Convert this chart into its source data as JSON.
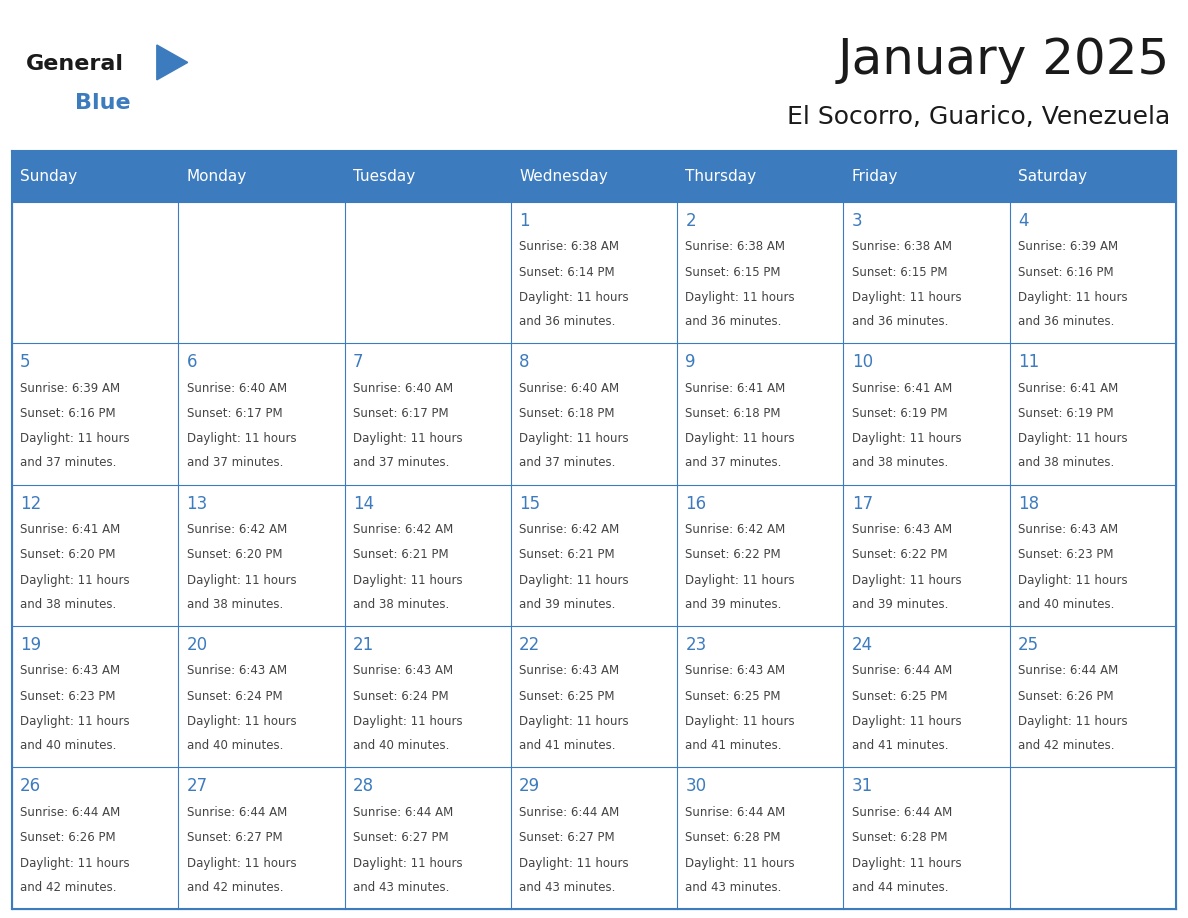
{
  "title": "January 2025",
  "subtitle": "El Socorro, Guarico, Venezuela",
  "header_bg_color": "#3d7bbf",
  "header_text_color": "#ffffff",
  "border_color": "#3d7bbf",
  "day_number_color": "#3d7bbf",
  "cell_text_color": "#444444",
  "days_of_week": [
    "Sunday",
    "Monday",
    "Tuesday",
    "Wednesday",
    "Thursday",
    "Friday",
    "Saturday"
  ],
  "calendar_data": [
    [
      {
        "day": "",
        "sunrise": "",
        "sunset": "",
        "daylight_h": "",
        "daylight_m": ""
      },
      {
        "day": "",
        "sunrise": "",
        "sunset": "",
        "daylight_h": "",
        "daylight_m": ""
      },
      {
        "day": "",
        "sunrise": "",
        "sunset": "",
        "daylight_h": "",
        "daylight_m": ""
      },
      {
        "day": "1",
        "sunrise": "6:38 AM",
        "sunset": "6:14 PM",
        "daylight_h": "11",
        "daylight_m": "36"
      },
      {
        "day": "2",
        "sunrise": "6:38 AM",
        "sunset": "6:15 PM",
        "daylight_h": "11",
        "daylight_m": "36"
      },
      {
        "day": "3",
        "sunrise": "6:38 AM",
        "sunset": "6:15 PM",
        "daylight_h": "11",
        "daylight_m": "36"
      },
      {
        "day": "4",
        "sunrise": "6:39 AM",
        "sunset": "6:16 PM",
        "daylight_h": "11",
        "daylight_m": "36"
      }
    ],
    [
      {
        "day": "5",
        "sunrise": "6:39 AM",
        "sunset": "6:16 PM",
        "daylight_h": "11",
        "daylight_m": "37"
      },
      {
        "day": "6",
        "sunrise": "6:40 AM",
        "sunset": "6:17 PM",
        "daylight_h": "11",
        "daylight_m": "37"
      },
      {
        "day": "7",
        "sunrise": "6:40 AM",
        "sunset": "6:17 PM",
        "daylight_h": "11",
        "daylight_m": "37"
      },
      {
        "day": "8",
        "sunrise": "6:40 AM",
        "sunset": "6:18 PM",
        "daylight_h": "11",
        "daylight_m": "37"
      },
      {
        "day": "9",
        "sunrise": "6:41 AM",
        "sunset": "6:18 PM",
        "daylight_h": "11",
        "daylight_m": "37"
      },
      {
        "day": "10",
        "sunrise": "6:41 AM",
        "sunset": "6:19 PM",
        "daylight_h": "11",
        "daylight_m": "38"
      },
      {
        "day": "11",
        "sunrise": "6:41 AM",
        "sunset": "6:19 PM",
        "daylight_h": "11",
        "daylight_m": "38"
      }
    ],
    [
      {
        "day": "12",
        "sunrise": "6:41 AM",
        "sunset": "6:20 PM",
        "daylight_h": "11",
        "daylight_m": "38"
      },
      {
        "day": "13",
        "sunrise": "6:42 AM",
        "sunset": "6:20 PM",
        "daylight_h": "11",
        "daylight_m": "38"
      },
      {
        "day": "14",
        "sunrise": "6:42 AM",
        "sunset": "6:21 PM",
        "daylight_h": "11",
        "daylight_m": "38"
      },
      {
        "day": "15",
        "sunrise": "6:42 AM",
        "sunset": "6:21 PM",
        "daylight_h": "11",
        "daylight_m": "39"
      },
      {
        "day": "16",
        "sunrise": "6:42 AM",
        "sunset": "6:22 PM",
        "daylight_h": "11",
        "daylight_m": "39"
      },
      {
        "day": "17",
        "sunrise": "6:43 AM",
        "sunset": "6:22 PM",
        "daylight_h": "11",
        "daylight_m": "39"
      },
      {
        "day": "18",
        "sunrise": "6:43 AM",
        "sunset": "6:23 PM",
        "daylight_h": "11",
        "daylight_m": "40"
      }
    ],
    [
      {
        "day": "19",
        "sunrise": "6:43 AM",
        "sunset": "6:23 PM",
        "daylight_h": "11",
        "daylight_m": "40"
      },
      {
        "day": "20",
        "sunrise": "6:43 AM",
        "sunset": "6:24 PM",
        "daylight_h": "11",
        "daylight_m": "40"
      },
      {
        "day": "21",
        "sunrise": "6:43 AM",
        "sunset": "6:24 PM",
        "daylight_h": "11",
        "daylight_m": "40"
      },
      {
        "day": "22",
        "sunrise": "6:43 AM",
        "sunset": "6:25 PM",
        "daylight_h": "11",
        "daylight_m": "41"
      },
      {
        "day": "23",
        "sunrise": "6:43 AM",
        "sunset": "6:25 PM",
        "daylight_h": "11",
        "daylight_m": "41"
      },
      {
        "day": "24",
        "sunrise": "6:44 AM",
        "sunset": "6:25 PM",
        "daylight_h": "11",
        "daylight_m": "41"
      },
      {
        "day": "25",
        "sunrise": "6:44 AM",
        "sunset": "6:26 PM",
        "daylight_h": "11",
        "daylight_m": "42"
      }
    ],
    [
      {
        "day": "26",
        "sunrise": "6:44 AM",
        "sunset": "6:26 PM",
        "daylight_h": "11",
        "daylight_m": "42"
      },
      {
        "day": "27",
        "sunrise": "6:44 AM",
        "sunset": "6:27 PM",
        "daylight_h": "11",
        "daylight_m": "42"
      },
      {
        "day": "28",
        "sunrise": "6:44 AM",
        "sunset": "6:27 PM",
        "daylight_h": "11",
        "daylight_m": "43"
      },
      {
        "day": "29",
        "sunrise": "6:44 AM",
        "sunset": "6:27 PM",
        "daylight_h": "11",
        "daylight_m": "43"
      },
      {
        "day": "30",
        "sunrise": "6:44 AM",
        "sunset": "6:28 PM",
        "daylight_h": "11",
        "daylight_m": "43"
      },
      {
        "day": "31",
        "sunrise": "6:44 AM",
        "sunset": "6:28 PM",
        "daylight_h": "11",
        "daylight_m": "44"
      },
      {
        "day": "",
        "sunrise": "",
        "sunset": "",
        "daylight_h": "",
        "daylight_m": ""
      }
    ]
  ],
  "logo_triangle_color": "#3d7bbf",
  "title_fontsize": 36,
  "subtitle_fontsize": 18,
  "header_fontsize": 11,
  "day_number_fontsize": 12,
  "cell_info_fontsize": 8.5,
  "logo_general_fontsize": 16,
  "logo_blue_fontsize": 16
}
